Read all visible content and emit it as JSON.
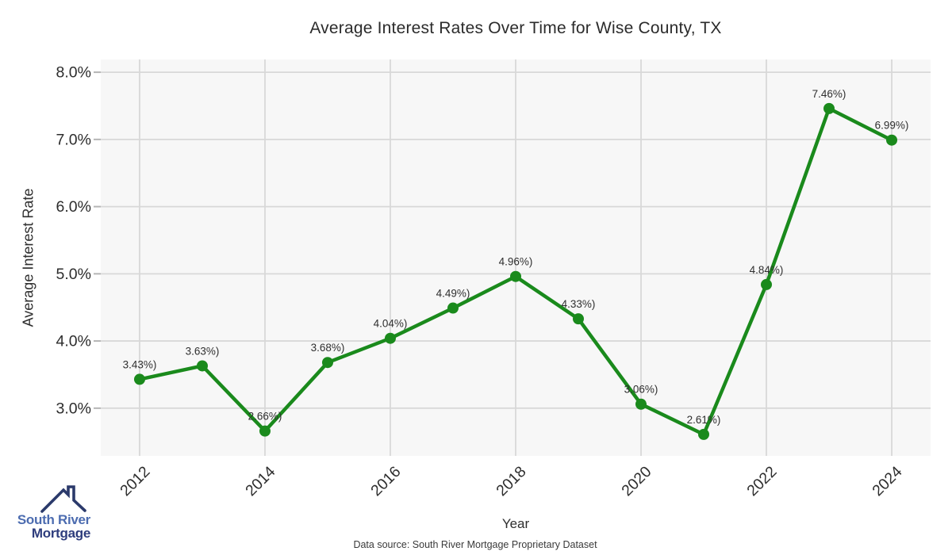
{
  "page": {
    "title": "Average Interest Rates Over Time for Wise County, TX",
    "source_note": "Data source: South River Mortgage Proprietary Dataset"
  },
  "logo": {
    "line1": "South River",
    "line2": "Mortgage",
    "text_color_primary": "#4c6cb0",
    "text_color_secondary": "#2e3d7d",
    "icon_color": "#2b3a6b",
    "icon": "house-roof-icon"
  },
  "chart_data": {
    "type": "line",
    "title": "Average Interest Rates Over Time for Wise County, TX",
    "xlabel": "Year",
    "ylabel": "Average Interest Rate",
    "x": [
      2012,
      2013,
      2014,
      2015,
      2016,
      2017,
      2018,
      2019,
      2020,
      2021,
      2022,
      2023,
      2024
    ],
    "values": [
      3.43,
      3.63,
      2.66,
      3.68,
      4.04,
      4.49,
      4.96,
      4.33,
      3.06,
      2.61,
      4.84,
      7.46,
      6.99
    ],
    "point_labels": [
      "3.43%)",
      "3.63%)",
      "2.66%)",
      "3.68%)",
      "4.04%)",
      "4.49%)",
      "4.96%)",
      "4.33%)",
      "3.06%)",
      "2.61%)",
      "4.84%)",
      "7.46%)",
      "6.99%)"
    ],
    "xtick_values": [
      2012,
      2014,
      2016,
      2018,
      2020,
      2022,
      2024
    ],
    "xtick_labels": [
      "2012",
      "2014",
      "2016",
      "2018",
      "2020",
      "2022",
      "2024"
    ],
    "ytick_values": [
      3,
      4,
      5,
      6,
      7,
      8
    ],
    "ytick_labels": [
      "3.0%",
      "4.0%",
      "5.0%",
      "6.0%",
      "7.0%",
      "8.0%"
    ],
    "xlim": [
      2011.38,
      2024.62
    ],
    "ylim": [
      2.29,
      8.19
    ],
    "grid": true,
    "legend": "none",
    "colors": {
      "line": "#1a8a1c",
      "marker": "#1a8a1c",
      "grid": "#d8d8d8",
      "tick": "#b5b5b5",
      "plot_bg": "#f7f7f7",
      "text": "#2d2d2d",
      "point_label": "#2f2f2f"
    }
  }
}
